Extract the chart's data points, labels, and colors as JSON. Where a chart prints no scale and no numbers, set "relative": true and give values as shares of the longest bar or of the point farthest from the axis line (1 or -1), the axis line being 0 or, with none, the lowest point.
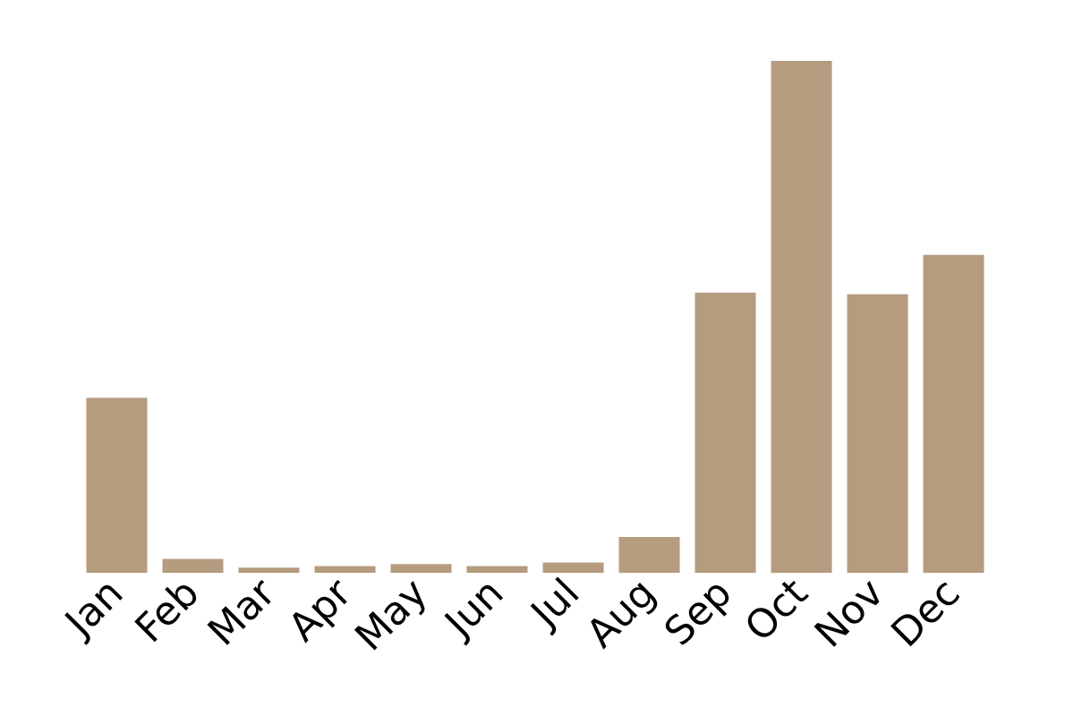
{
  "chart_data": {
    "type": "bar",
    "relative": true,
    "categories": [
      "Jan",
      "Feb",
      "Mar",
      "Apr",
      "May",
      "Jun",
      "Jul",
      "Aug",
      "Sep",
      "Oct",
      "Nov",
      "Dec"
    ],
    "values": [
      0.342,
      0.027,
      0.01,
      0.013,
      0.017,
      0.013,
      0.02,
      0.07,
      0.547,
      1,
      0.544,
      0.621
    ],
    "color": "#b59c7f",
    "grid": false
  }
}
